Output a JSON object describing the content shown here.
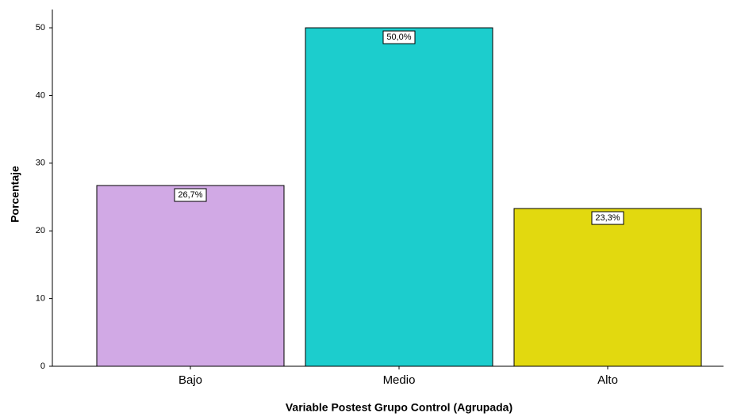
{
  "chart_data": {
    "type": "bar",
    "categories": [
      "Bajo",
      "Medio",
      "Alto"
    ],
    "values": [
      26.7,
      50.0,
      23.3
    ],
    "value_labels": [
      "26,7%",
      "50,0%",
      "23,3%"
    ],
    "colors": [
      "#d1a9e5",
      "#1ccdcd",
      "#e2d90f"
    ],
    "xlabel": "Variable Postest Grupo Control (Agrupada)",
    "ylabel": "Porcentaje",
    "ylim": [
      0,
      52.7
    ],
    "yticks": [
      0,
      10,
      20,
      30,
      40,
      50
    ],
    "grid": false
  }
}
